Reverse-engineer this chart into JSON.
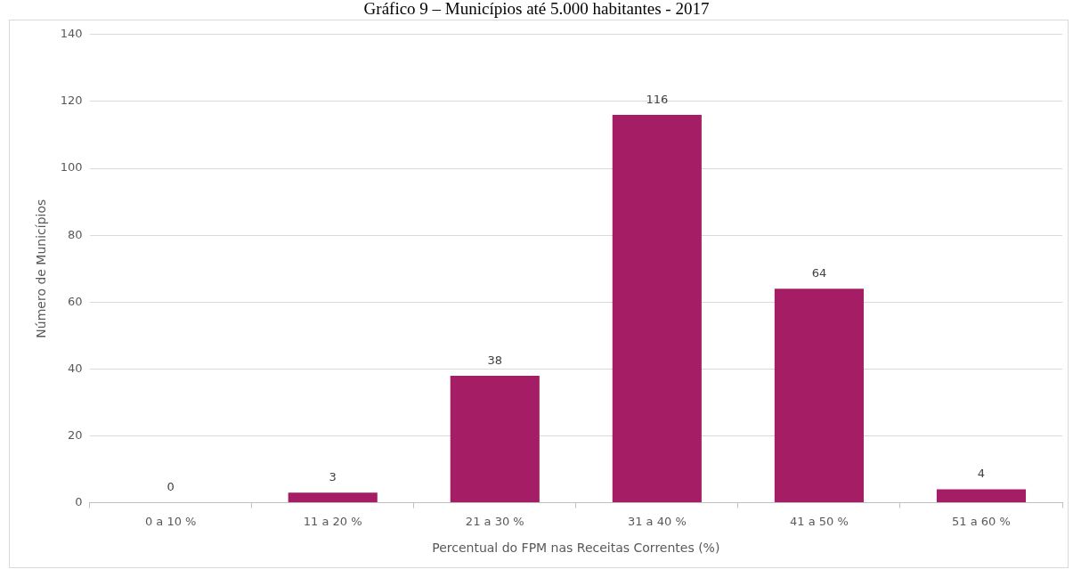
{
  "chart_data": {
    "type": "bar",
    "title": "Gráfico 9 – Municípios até 5.000 habitantes - 2017",
    "xlabel": "Percentual do FPM nas Receitas Correntes (%)",
    "ylabel": "Número de Municípios",
    "categories": [
      "0 a 10 %",
      "11 a 20 %",
      "21 a 30 %",
      "31 a 40 %",
      "41 a 50 %",
      "51 a 60 %"
    ],
    "values": [
      0,
      3,
      38,
      116,
      64,
      4
    ],
    "color": "#a51d64",
    "ylim": [
      0,
      140
    ],
    "yticks": [
      0,
      20,
      40,
      60,
      80,
      100,
      120,
      140
    ],
    "grid": "y",
    "data_labels": true,
    "legend": false
  }
}
